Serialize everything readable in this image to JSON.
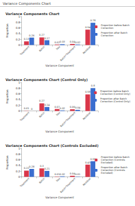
{
  "header": "Variance Components Chart",
  "chart_data": [
    {
      "type": "bar",
      "title": "Variance Components Chart",
      "x_label": "Variance Component",
      "y_label": "Proportion",
      "categories": [
        "Treatment",
        "Batch",
        "Sex",
        "Batch*Treatment",
        "Residual"
      ],
      "series": [
        {
          "name": "Proportion before Batch Correction",
          "color": "#d9374a",
          "values": [
            0.13,
            0.27,
            0.02,
            0.04,
            0.54
          ]
        },
        {
          "name": "Proportion after Batch Correction",
          "color": "#3b6ecf",
          "values": [
            0.26,
            0.17,
            0.03,
            0.02,
            0.78
          ]
        }
      ],
      "ylim": [
        0,
        1
      ],
      "yticks": [
        0,
        0.2,
        0.4,
        0.6,
        0.8,
        1
      ],
      "data_labels": true,
      "legend": "right"
    },
    {
      "type": "bar",
      "title": "Variance Components Chart (Control Only)",
      "x_label": "Variance Component",
      "y_label": "Proportion",
      "categories": [
        "Treatment",
        "Batch",
        "Sex",
        "Batch*Treatment",
        "Residual"
      ],
      "series": [
        {
          "name": "Proportion before Batch Correction (Control Only)",
          "color": "#d9374a",
          "values": [
            0.01,
            0.27,
            0.07,
            0.06,
            0.58
          ]
        },
        {
          "name": "Proportion after Batch Correction (Control Only)",
          "color": "#3b6ecf",
          "values": [
            0,
            0.14,
            0.02,
            0.04,
            0.8
          ]
        }
      ],
      "ylim": [
        0,
        1
      ],
      "yticks": [
        0,
        0.2,
        0.4,
        0.6,
        0.8,
        1
      ],
      "data_labels": true,
      "legend": "right"
    },
    {
      "type": "bar",
      "title": "Variance Components Chart (Controls Excluded)",
      "x_label": "Variance Component",
      "y_label": "Proportion",
      "categories": [
        "Treatment",
        "Batch",
        "Sex",
        "Batch*Treatment",
        "Residual"
      ],
      "series": [
        {
          "name": "Proportion before Batch Correction (Controls Excluded)",
          "color": "#d9374a",
          "values": [
            0.22,
            0.3,
            0.01,
            0.04,
            0.43
          ]
        },
        {
          "name": "Proportion after Batch Correction (Controls Excluded)",
          "color": "#3b6ecf",
          "values": [
            0.28,
            0.21,
            0.02,
            0.01,
            0.55
          ]
        }
      ],
      "ylim": [
        0,
        1
      ],
      "yticks": [
        0,
        0.2,
        0.4,
        0.6,
        0.8,
        1
      ],
      "data_labels": true,
      "legend": "right"
    }
  ]
}
